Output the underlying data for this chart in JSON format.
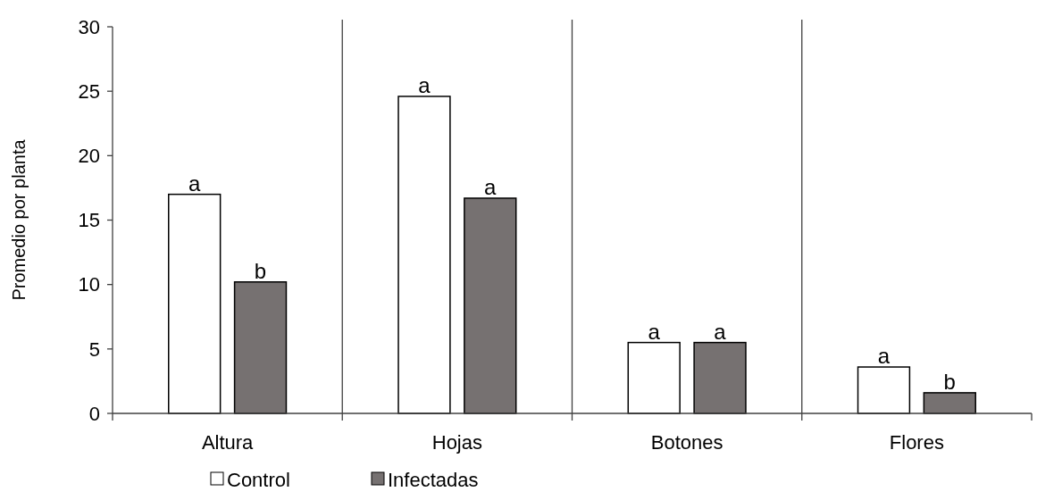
{
  "chart_data": {
    "type": "bar",
    "ylabel": "Promedio por planta",
    "categories": [
      "Altura",
      "Hojas",
      "Botones",
      "Flores"
    ],
    "series": [
      {
        "name": "Control",
        "color": "#ffffff",
        "values": [
          17,
          24.6,
          5.5,
          3.6
        ],
        "value_labels": [
          "a",
          "a",
          "a",
          "a"
        ]
      },
      {
        "name": "Infectadas",
        "color": "#767171",
        "values": [
          10.2,
          16.7,
          5.5,
          1.6
        ],
        "value_labels": [
          "b",
          "a",
          "a",
          "b"
        ]
      }
    ],
    "ylim": [
      0,
      30
    ],
    "yticks": [
      0,
      5,
      10,
      15,
      20,
      25,
      30
    ],
    "legend": "bottom",
    "grid": false
  }
}
